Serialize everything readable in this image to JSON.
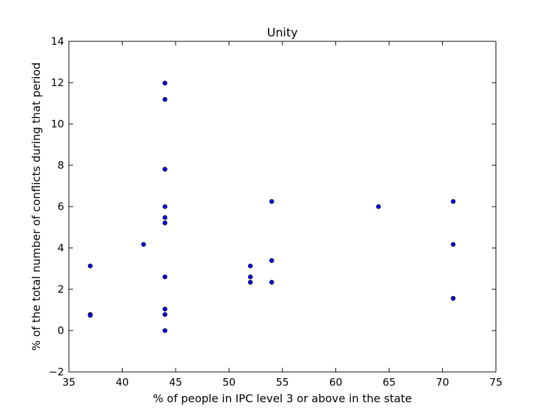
{
  "chart_data": {
    "type": "scatter",
    "title": "Unity",
    "xlabel": "% of people in IPC level 3 or above in the state",
    "ylabel": "% of the total number of conflicts during that period",
    "xlim": [
      35,
      75
    ],
    "ylim": [
      -2,
      14
    ],
    "xticks": [
      35,
      40,
      45,
      50,
      55,
      60,
      65,
      70,
      75
    ],
    "yticks": [
      -2,
      0,
      2,
      4,
      6,
      8,
      10,
      12,
      14
    ],
    "ytick_labels": [
      "−2",
      "0",
      "2",
      "4",
      "6",
      "8",
      "10",
      "12",
      "14"
    ],
    "grid": false,
    "legend": "none",
    "marker_color": "#0000ff",
    "marker_edge_color": "#000000",
    "points": [
      {
        "x": 37,
        "y": 3.13
      },
      {
        "x": 37,
        "y": 0.78
      },
      {
        "x": 37,
        "y": 0.74
      },
      {
        "x": 42,
        "y": 4.17
      },
      {
        "x": 44,
        "y": 11.98
      },
      {
        "x": 44,
        "y": 11.19
      },
      {
        "x": 44,
        "y": 7.81
      },
      {
        "x": 44,
        "y": 6.0
      },
      {
        "x": 44,
        "y": 5.47
      },
      {
        "x": 44,
        "y": 5.21
      },
      {
        "x": 44,
        "y": 2.6
      },
      {
        "x": 44,
        "y": 1.04
      },
      {
        "x": 44,
        "y": 0.78
      },
      {
        "x": 44,
        "y": 0.0
      },
      {
        "x": 52,
        "y": 3.13
      },
      {
        "x": 52,
        "y": 2.6
      },
      {
        "x": 52,
        "y": 2.34
      },
      {
        "x": 54,
        "y": 6.25
      },
      {
        "x": 54,
        "y": 3.39
      },
      {
        "x": 54,
        "y": 2.34
      },
      {
        "x": 64,
        "y": 6.0
      },
      {
        "x": 71,
        "y": 6.25
      },
      {
        "x": 71,
        "y": 4.17
      },
      {
        "x": 71,
        "y": 1.56
      }
    ]
  }
}
